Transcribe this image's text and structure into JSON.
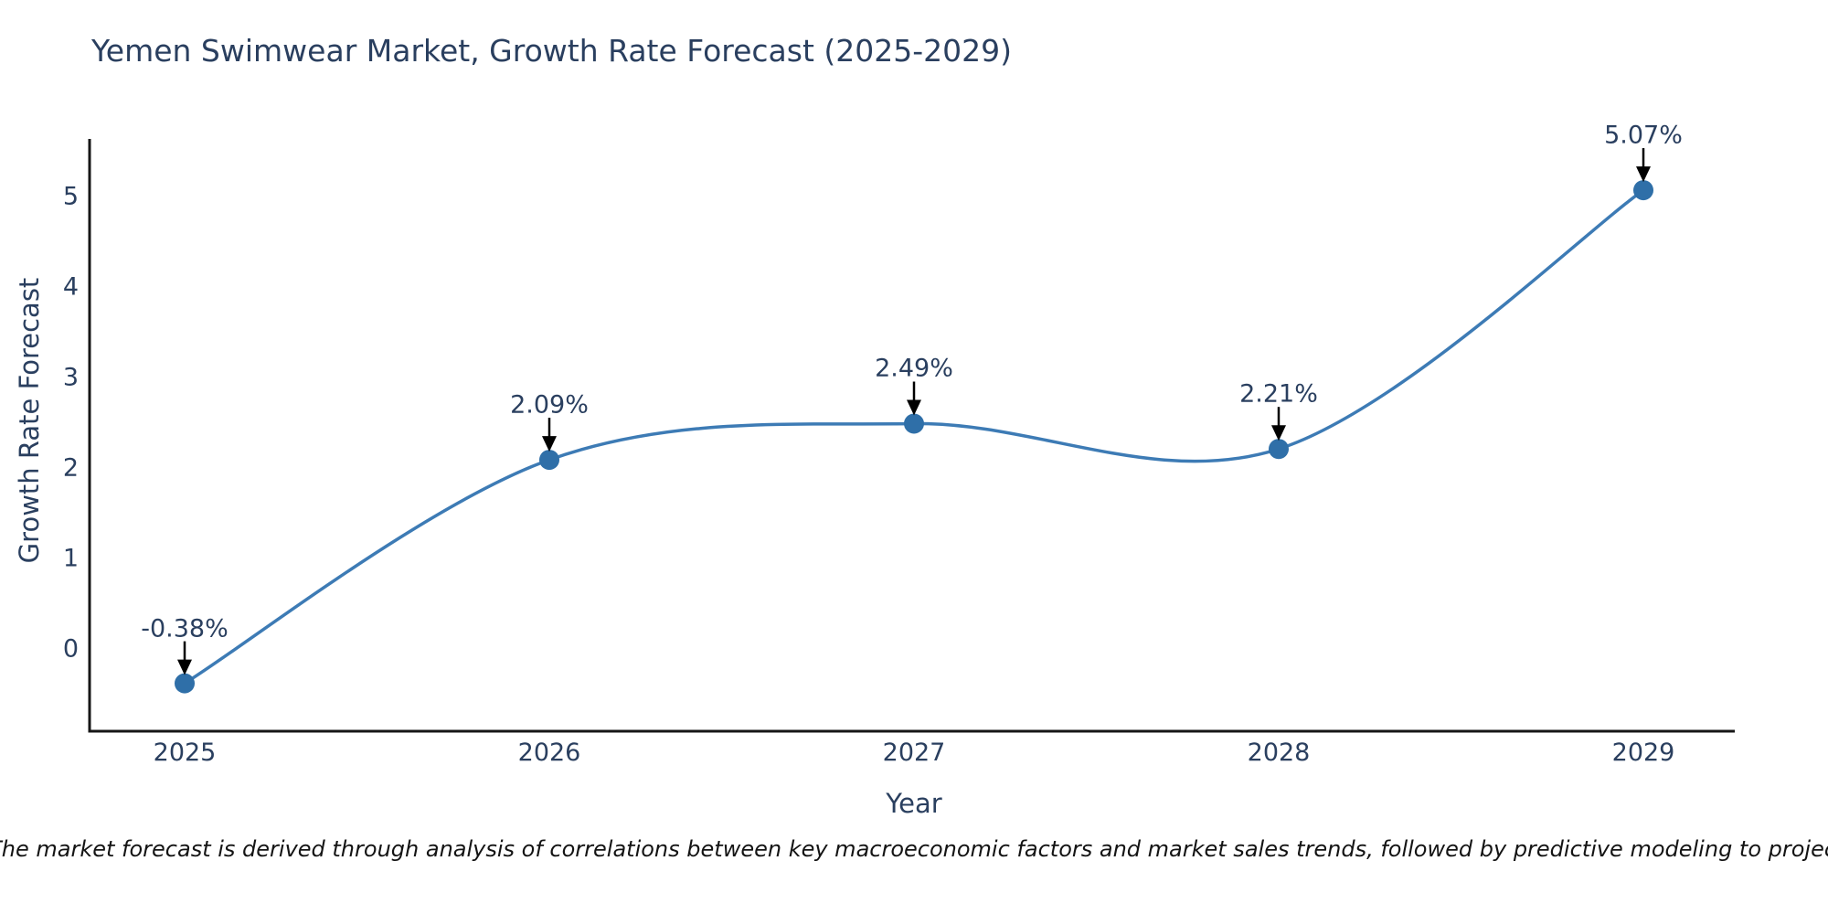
{
  "title": "Yemen Swimwear Market, Growth Rate Forecast (2025-2029)",
  "note": "Note: The market forecast is derived through analysis of correlations between key macroeconomic factors and market sales trends, followed by predictive modeling to project future sales.",
  "chart_data": {
    "type": "line",
    "line_shape": "spline",
    "title": "Yemen Swimwear Market, Growth Rate Forecast (2025-2029)",
    "xlabel": "Year",
    "ylabel": "Growth Rate Forecast",
    "x": [
      2025,
      2026,
      2027,
      2028,
      2029
    ],
    "y": [
      -0.38,
      2.09,
      2.49,
      2.21,
      5.07
    ],
    "point_labels": [
      "-0.38%",
      "2.09%",
      "2.49%",
      "2.21%",
      "5.07%"
    ],
    "xticks": [
      "2025",
      "2026",
      "2027",
      "2028",
      "2029"
    ],
    "yticks": [
      0,
      1,
      2,
      3,
      4,
      5
    ],
    "xlim": [
      2024.74,
      2029.25
    ],
    "ylim": [
      -0.91,
      5.63
    ],
    "grid": false,
    "legend": "none",
    "markers": true,
    "annotations_arrows": true,
    "colors": {
      "line": "#3d7bb5",
      "marker": "#2f6fa8",
      "arrow": "#000000",
      "text": "#2a3f5f",
      "axis": "#161616",
      "background": "#ffffff"
    }
  }
}
